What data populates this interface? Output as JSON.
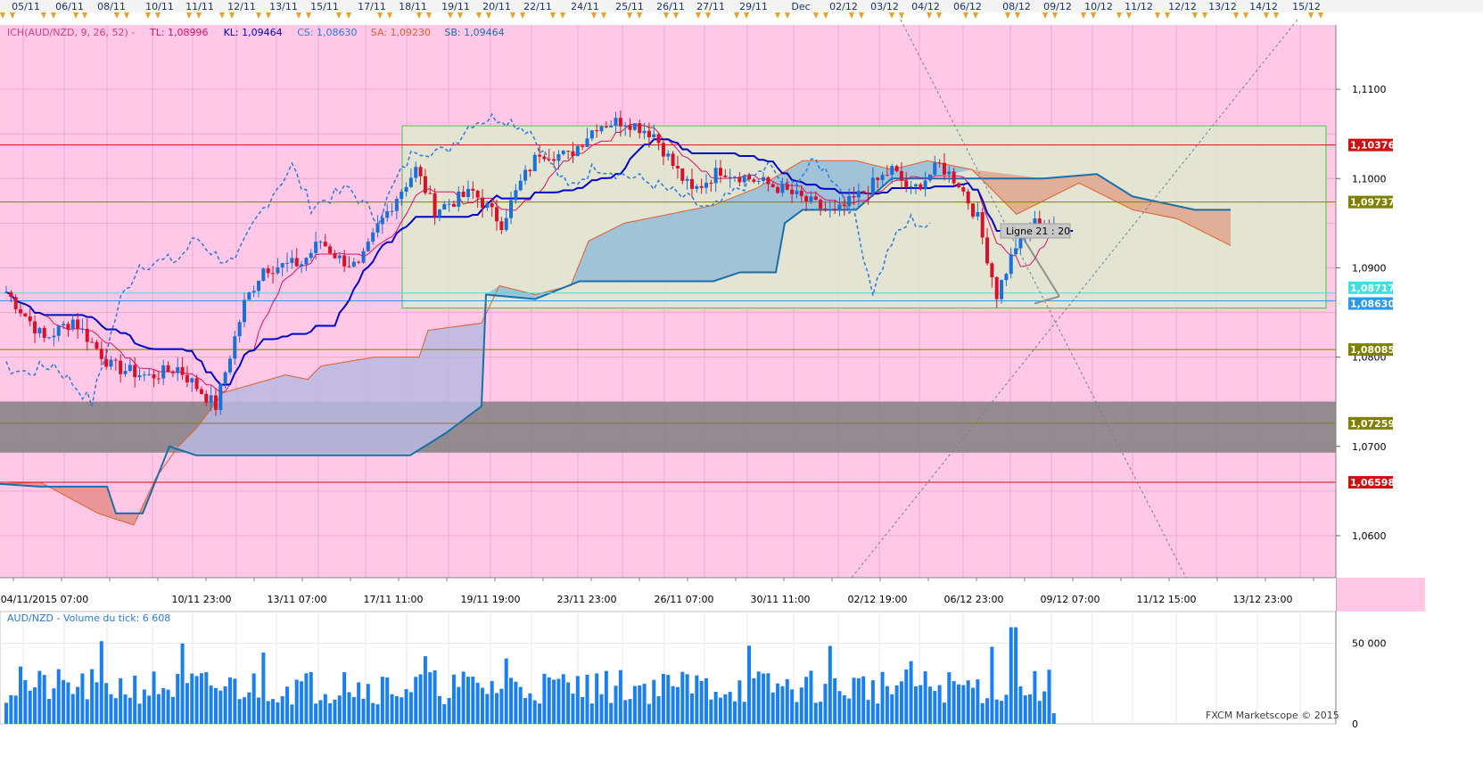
{
  "colors": {
    "background": "#ffc8e6",
    "bullish": "#1a6fd8",
    "bearish": "#d8102a",
    "tenkan": "#e0106a",
    "kijun": "#0000c8",
    "chikou": "#2a7ae0",
    "senkou_a": "#e0602a",
    "senkou_b": "#1a6fa8",
    "volume": "#1a7ff0",
    "kumo_bull": "#8ab8d8",
    "kumo_bear": "#e89090",
    "zone": "#e0e8d0",
    "resist_band": "#808080"
  },
  "top_dates": [
    "05/11",
    "06/11",
    "08/11",
    "10/11",
    "11/11",
    "12/11",
    "13/11",
    "15/11",
    "17/11",
    "18/11",
    "19/11",
    "20/11",
    "22/11",
    "24/11",
    "25/11",
    "26/11",
    "27/11",
    "29/11",
    "Dec",
    "02/12",
    "03/12",
    "04/12",
    "06/12",
    "08/12",
    "09/12",
    "10/12",
    "11/12",
    "12/12",
    "13/12",
    "14/12",
    "15/12"
  ],
  "chart_data": [
    {
      "type": "line",
      "legend": {
        "title": "ICH(AUD/NZD, 9, 26, 52) -",
        "items": [
          {
            "label": "TL: 1,08996",
            "color": "#e0106a"
          },
          {
            "label": "KL: 1,09464",
            "color": "#0000c8"
          },
          {
            "label": "CS: 1,08630",
            "color": "#2a7ae0"
          },
          {
            "label": "SA: 1,09230",
            "color": "#e0602a"
          },
          {
            "label": "SB: 1,09464",
            "color": "#1a6fa8"
          }
        ]
      },
      "ylim": [
        1.0553,
        1.1172
      ],
      "y_ticks": [
        "1,1100",
        "1,1000",
        "1,0900",
        "1,0800",
        "1,0700",
        "1,0600"
      ],
      "x_labels": [
        "04/11/2015 07:00",
        "10/11 23:00",
        "13/11 07:00",
        "17/11 11:00",
        "19/11 19:00",
        "23/11 23:00",
        "26/11 07:00",
        "30/11 11:00",
        "02/12 19:00",
        "06/12 23:00",
        "09/12 07:00",
        "11/12 15:00",
        "13/12 23:00"
      ],
      "price_levels": [
        {
          "label": "1,10376",
          "value": 1.10376,
          "color": "#d01010",
          "text_color": "#ffffff"
        },
        {
          "label": "1,09737",
          "value": 1.09737,
          "color": "#808000",
          "text_color": "#ffffff"
        },
        {
          "label": "1,08717",
          "value": 1.08717,
          "color": "#40e0e0",
          "text_color": "#ffffff"
        },
        {
          "label": "1,08630",
          "value": 1.0863,
          "color": "#2a9af0",
          "text_color": "#ffffff"
        },
        {
          "label": "1,08085",
          "value": 1.08085,
          "color": "#808000",
          "text_color": "#ffffff"
        },
        {
          "label": "1,07259",
          "value": 1.07259,
          "color": "#808000",
          "text_color": "#ffffff"
        },
        {
          "label": "1,06598",
          "value": 1.06598,
          "color": "#d01010",
          "text_color": "#ffffff"
        }
      ],
      "resistance_band": [
        1.0693,
        1.075
      ],
      "zone_box": {
        "top": 1.1059,
        "bottom": 1.0855,
        "from": "17/11 11:00",
        "to": "15/12"
      },
      "annotation": "Ligne 21 : 20",
      "candles_shown": 221
    },
    {
      "type": "bar",
      "title": "AUD/NZD - Volume du tick: 6 608",
      "ylim": [
        0,
        62000
      ],
      "y_ticks": [
        "50 000",
        "0"
      ]
    }
  ],
  "watermark": "FXCM Marketscope © 2015"
}
